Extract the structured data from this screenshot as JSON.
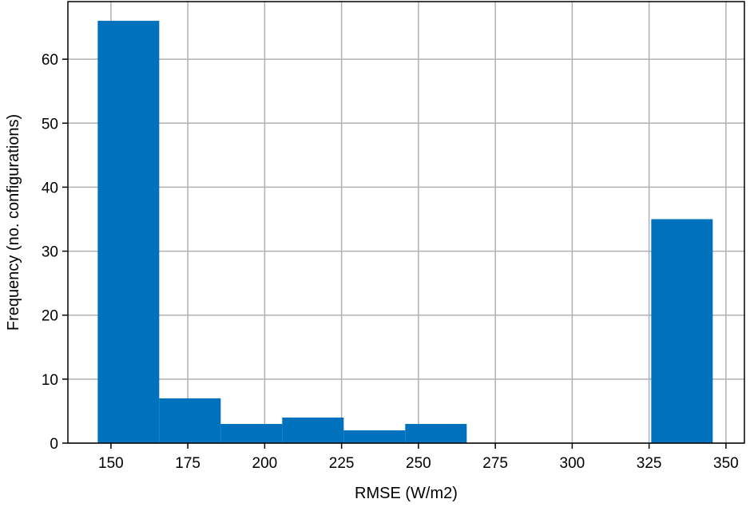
{
  "chart_data": {
    "type": "bar",
    "title": "",
    "xlabel": "RMSE (W/m2)",
    "ylabel": "Frequency (no. configurations)",
    "xlim": [
      136,
      356
    ],
    "ylim": [
      0,
      69
    ],
    "xticks": [
      150,
      175,
      200,
      225,
      250,
      275,
      300,
      325,
      350
    ],
    "yticks": [
      0,
      10,
      20,
      30,
      40,
      50,
      60
    ],
    "grid": true,
    "bar_color": "#0072bd",
    "bins": [
      {
        "start": 145.7,
        "end": 165.7,
        "value": 66
      },
      {
        "start": 165.7,
        "end": 185.7,
        "value": 7
      },
      {
        "start": 185.7,
        "end": 205.7,
        "value": 3
      },
      {
        "start": 205.7,
        "end": 225.7,
        "value": 4
      },
      {
        "start": 225.7,
        "end": 245.7,
        "value": 2
      },
      {
        "start": 245.7,
        "end": 265.7,
        "value": 3
      },
      {
        "start": 265.7,
        "end": 285.7,
        "value": 0
      },
      {
        "start": 285.7,
        "end": 305.7,
        "value": 0
      },
      {
        "start": 305.7,
        "end": 325.7,
        "value": 0
      },
      {
        "start": 325.7,
        "end": 345.7,
        "value": 35
      }
    ]
  }
}
